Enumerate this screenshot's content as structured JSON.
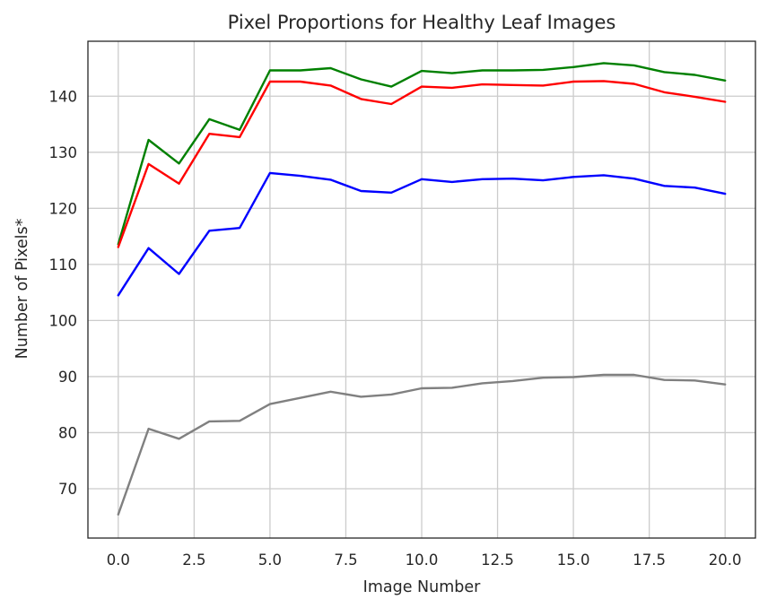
{
  "chart_data": {
    "type": "line",
    "title": "Pixel Proportions for Healthy Leaf Images",
    "xlabel": "Image Number",
    "ylabel": "Number of Pixels*",
    "xlim": [
      -1,
      21
    ],
    "ylim": [
      61.2,
      149.8
    ],
    "x_ticks": [
      0.0,
      2.5,
      5.0,
      7.5,
      10.0,
      12.5,
      15.0,
      17.5,
      20.0
    ],
    "x_tick_labels": [
      "0.0",
      "2.5",
      "5.0",
      "7.5",
      "10.0",
      "12.5",
      "15.0",
      "17.5",
      "20.0"
    ],
    "y_ticks": [
      70,
      80,
      90,
      100,
      110,
      120,
      130,
      140
    ],
    "y_tick_labels": [
      "70",
      "80",
      "90",
      "100",
      "110",
      "120",
      "130",
      "140"
    ],
    "grid": true,
    "legend": false,
    "x": [
      0,
      1,
      2,
      3,
      4,
      5,
      6,
      7,
      8,
      9,
      10,
      11,
      12,
      13,
      14,
      15,
      16,
      17,
      18,
      19,
      20
    ],
    "series": [
      {
        "color": "#008000",
        "values": [
          113.6,
          132.2,
          128.0,
          135.9,
          134.0,
          144.6,
          144.6,
          145.0,
          143.0,
          141.7,
          144.5,
          144.1,
          144.6,
          144.6,
          144.7,
          145.2,
          145.9,
          145.5,
          144.3,
          143.8,
          142.8
        ]
      },
      {
        "color": "#ff0000",
        "values": [
          113.1,
          127.9,
          124.4,
          133.3,
          132.7,
          142.6,
          142.6,
          141.9,
          139.5,
          138.6,
          141.7,
          141.5,
          142.1,
          142.0,
          141.9,
          142.6,
          142.7,
          142.2,
          140.7,
          139.9,
          139.0
        ]
      },
      {
        "color": "#0000ff",
        "values": [
          104.5,
          112.9,
          108.3,
          116.0,
          116.5,
          126.3,
          125.8,
          125.1,
          123.1,
          122.8,
          125.2,
          124.7,
          125.2,
          125.3,
          125.0,
          125.6,
          125.9,
          125.3,
          124.0,
          123.7,
          122.6
        ]
      },
      {
        "color": "#808080",
        "values": [
          65.4,
          80.7,
          78.9,
          82.0,
          82.1,
          85.1,
          86.2,
          87.3,
          86.4,
          86.8,
          87.9,
          88.0,
          88.8,
          89.2,
          89.8,
          89.9,
          90.3,
          90.3,
          89.4,
          89.3,
          88.6
        ]
      }
    ]
  }
}
